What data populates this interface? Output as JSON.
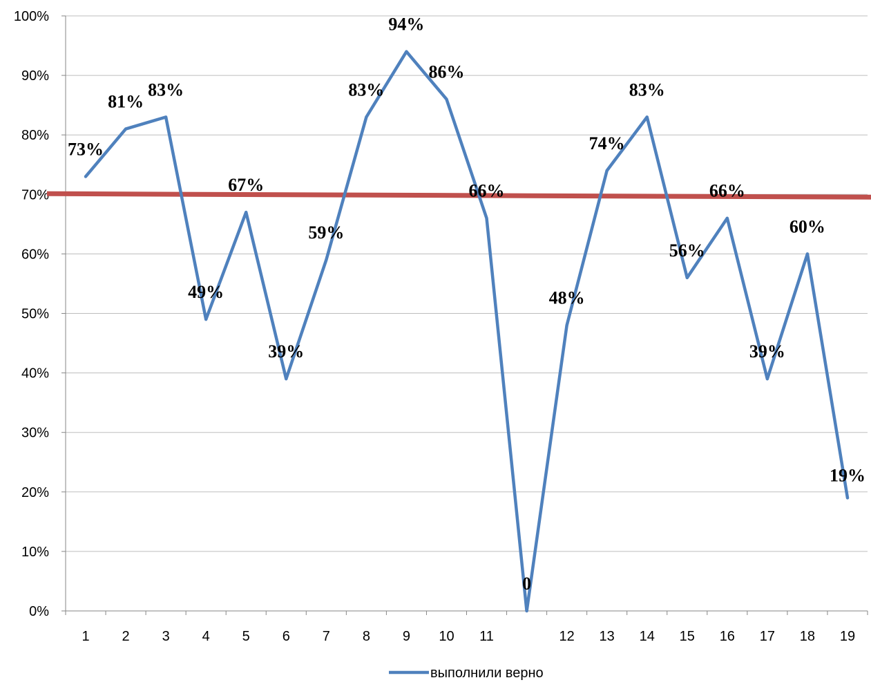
{
  "chart_data": {
    "type": "line",
    "categories": [
      "1",
      "2",
      "3",
      "4",
      "5",
      "6",
      "7",
      "8",
      "9",
      "10",
      "11",
      "",
      "12",
      "13",
      "14",
      "15",
      "16",
      "17",
      "18",
      "19"
    ],
    "series": [
      {
        "name": "выполнили верно",
        "values": [
          0.73,
          0.81,
          0.83,
          0.49,
          0.67,
          0.39,
          0.59,
          0.83,
          0.94,
          0.86,
          0.66,
          0,
          0.48,
          0.74,
          0.83,
          0.56,
          0.66,
          0.39,
          0.6,
          0.19
        ],
        "labels": [
          "73%",
          "81%",
          "83%",
          "49%",
          "67%",
          "39%",
          "59%",
          "83%",
          "94%",
          "86%",
          "66%",
          "0",
          "48%",
          "74%",
          "83%",
          "56%",
          "66%",
          "39%",
          "60%",
          "19%"
        ]
      }
    ],
    "threshold": {
      "value": 0.7
    },
    "ylim": [
      0,
      1
    ],
    "yticks": [
      "0%",
      "10%",
      "20%",
      "30%",
      "40%",
      "50%",
      "60%",
      "70%",
      "80%",
      "90%",
      "100%"
    ],
    "grid": true,
    "legend": "bottom",
    "colors": {
      "series": "#4f81bd",
      "threshold": "#c0504d",
      "grid": "#bdbdbd"
    }
  }
}
